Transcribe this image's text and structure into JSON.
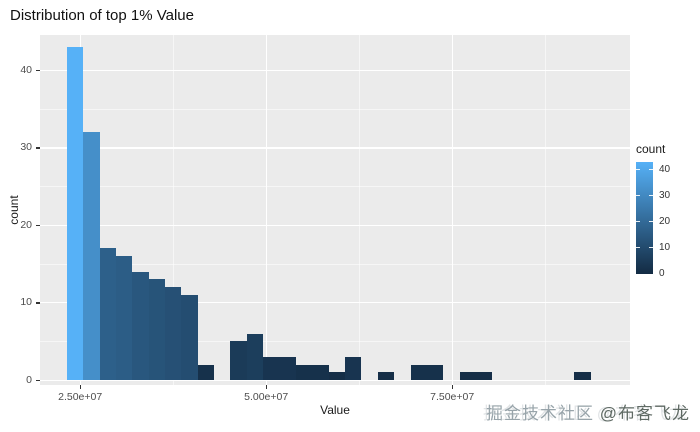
{
  "title": "Distribution of top 1% Value",
  "watermark": {
    "community": "掘金技术社区",
    "author": "@布客飞龙"
  },
  "chart_data": {
    "type": "bar",
    "subtype": "histogram",
    "title": "Distribution of top 1% Value",
    "xlabel": "Value",
    "ylabel": "count",
    "x_ticks": [
      {
        "value": 25000000,
        "label": "2.50e+07"
      },
      {
        "value": 50000000,
        "label": "5.00e+07"
      },
      {
        "value": 75000000,
        "label": "7.50e+07"
      }
    ],
    "x_minor_ticks": [
      12500000,
      37500000,
      62500000,
      87500000
    ],
    "y_ticks": [
      0,
      10,
      20,
      30,
      40
    ],
    "y_minor_ticks": [
      5,
      15,
      25,
      35
    ],
    "xlim": [
      19600000,
      98900000
    ],
    "ylim": [
      0,
      45
    ],
    "bin_start": 23200000,
    "bin_width": 2200000,
    "counts": [
      43,
      32,
      17,
      16,
      14,
      13,
      12,
      11,
      2,
      0,
      5,
      6,
      3,
      3,
      2,
      2,
      1,
      3,
      0,
      1,
      0,
      2,
      2,
      0,
      1,
      1,
      0,
      0,
      0,
      0,
      0,
      1
    ],
    "fill_scale": {
      "low": "#132B43",
      "high": "#56B1F7",
      "min": 0,
      "max": 43
    },
    "legend": {
      "title": "count",
      "ticks": [
        40,
        30,
        20,
        10,
        0
      ]
    },
    "panel_bg": "#EBEBEB",
    "grid_color": "#FFFFFF",
    "grid": true,
    "legend_position": "right"
  }
}
